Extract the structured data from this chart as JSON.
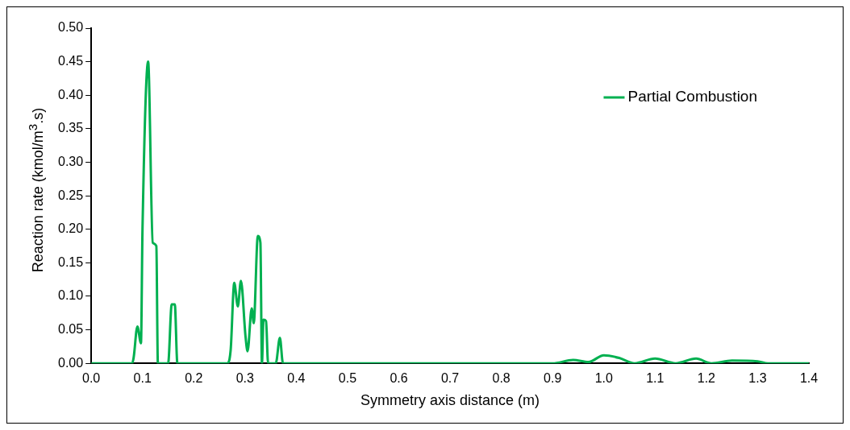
{
  "chart_data": {
    "type": "line",
    "xlabel": "Symmetry axis distance (m)",
    "ylabel": "Reaction rate (kmol/m$^{3}$.s)",
    "xlim": [
      0,
      1.4
    ],
    "xticks": [
      {
        "value": 0,
        "label": "0.0"
      },
      0.1,
      0.2,
      0.3,
      0.4,
      0.5,
      0.6,
      0.7,
      0.8,
      0.9,
      {
        "value": 1,
        "label": "1.0"
      },
      1.1,
      1.2,
      1.3,
      1.4
    ],
    "ylim": [
      0,
      0.5
    ],
    "yticks": [
      {
        "value": 0,
        "label": "0.00"
      },
      0.05,
      {
        "value": 0.1,
        "label": "0.10"
      },
      0.15,
      {
        "value": 0.2,
        "label": "0.20"
      },
      0.25,
      {
        "value": 0.3,
        "label": "0.30"
      },
      0.35,
      {
        "value": 0.4,
        "label": "0.40"
      },
      0.45,
      {
        "value": 0.5,
        "label": "0.50"
      }
    ],
    "grid": false,
    "legend": "top right",
    "marker": "none",
    "line_style": "solid",
    "series": [
      {
        "name": "Partial Combustion",
        "color": "#00b050",
        "x": [
          0,
          0.08,
          0.083,
          0.09,
          0.097,
          0.1,
          0.111,
          0.12,
          0.127,
          0.13,
          0.15,
          0.157,
          0.163,
          0.168,
          0.265,
          0.272,
          0.279,
          0.286,
          0.292,
          0.301,
          0.305,
          0.313,
          0.317,
          0.325,
          0.33,
          0.333,
          0.336,
          0.341,
          0.345,
          0.36,
          0.368,
          0.374,
          0.9,
          0.94,
          0.97,
          1.0,
          1.03,
          1.06,
          1.1,
          1.14,
          1.18,
          1.21,
          1.25,
          1.3,
          1.32,
          1.4
        ],
        "values": [
          0,
          0,
          0.01,
          0.055,
          0.03,
          0.2,
          0.45,
          0.18,
          0.175,
          0,
          0,
          0.088,
          0.088,
          0,
          0,
          0.02,
          0.12,
          0.085,
          0.123,
          0.04,
          0.018,
          0.082,
          0.06,
          0.19,
          0.18,
          0,
          0.065,
          0.063,
          0,
          0,
          0.038,
          0,
          0,
          0.005,
          0.002,
          0.012,
          0.008,
          0,
          0.007,
          0,
          0.007,
          0,
          0.004,
          0.003,
          0,
          0
        ]
      }
    ]
  }
}
